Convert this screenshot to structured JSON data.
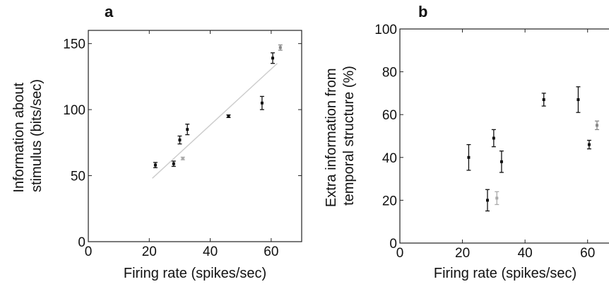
{
  "chart_data": [
    {
      "type": "scatter",
      "panel_label": "a",
      "title": "",
      "xlabel": "Firing rate (spikes/sec)",
      "ylabel_lines": [
        "Information about",
        "stimulus (bits/sec)"
      ],
      "xlim": [
        0,
        70
      ],
      "ylim": [
        0,
        160
      ],
      "xticks": [
        0,
        20,
        40,
        60
      ],
      "yticks": [
        0,
        50,
        100,
        150
      ],
      "grid": false,
      "points": [
        {
          "x": 22,
          "y": 58,
          "err": 2,
          "color": "#111111"
        },
        {
          "x": 28,
          "y": 59,
          "err": 2,
          "color": "#111111"
        },
        {
          "x": 30,
          "y": 77,
          "err": 3,
          "color": "#111111"
        },
        {
          "x": 31,
          "y": 63,
          "err": 1,
          "color": "#aaaaaa"
        },
        {
          "x": 32.5,
          "y": 85,
          "err": 4,
          "color": "#111111"
        },
        {
          "x": 46,
          "y": 95,
          "err": 1,
          "color": "#111111"
        },
        {
          "x": 57,
          "y": 105,
          "err": 5,
          "color": "#111111"
        },
        {
          "x": 60.5,
          "y": 139,
          "err": 4,
          "color": "#111111"
        },
        {
          "x": 63,
          "y": 147,
          "err": 2,
          "color": "#888888"
        }
      ],
      "fit_line": {
        "x": [
          21,
          62
        ],
        "y": [
          48,
          135
        ],
        "color": "#cccccc"
      }
    },
    {
      "type": "scatter",
      "panel_label": "b",
      "title": "",
      "xlabel": "Firing rate (spikes/sec)",
      "ylabel_lines": [
        "Extra information from",
        "temporal structure (%)"
      ],
      "xlim": [
        0,
        70
      ],
      "ylim": [
        0,
        100
      ],
      "xticks": [
        0,
        20,
        40,
        60
      ],
      "yticks": [
        0,
        20,
        40,
        60,
        80,
        100
      ],
      "grid": false,
      "points": [
        {
          "x": 22,
          "y": 40,
          "err": 6,
          "color": "#111111"
        },
        {
          "x": 28,
          "y": 20,
          "err": 5,
          "color": "#111111"
        },
        {
          "x": 30,
          "y": 49,
          "err": 4,
          "color": "#111111"
        },
        {
          "x": 31,
          "y": 21,
          "err": 3,
          "color": "#aaaaaa"
        },
        {
          "x": 32.5,
          "y": 38,
          "err": 5,
          "color": "#111111"
        },
        {
          "x": 46,
          "y": 67,
          "err": 3,
          "color": "#111111"
        },
        {
          "x": 57,
          "y": 67,
          "err": 6,
          "color": "#111111"
        },
        {
          "x": 60.5,
          "y": 46,
          "err": 2,
          "color": "#111111"
        },
        {
          "x": 63,
          "y": 55,
          "err": 2,
          "color": "#888888"
        }
      ]
    }
  ]
}
